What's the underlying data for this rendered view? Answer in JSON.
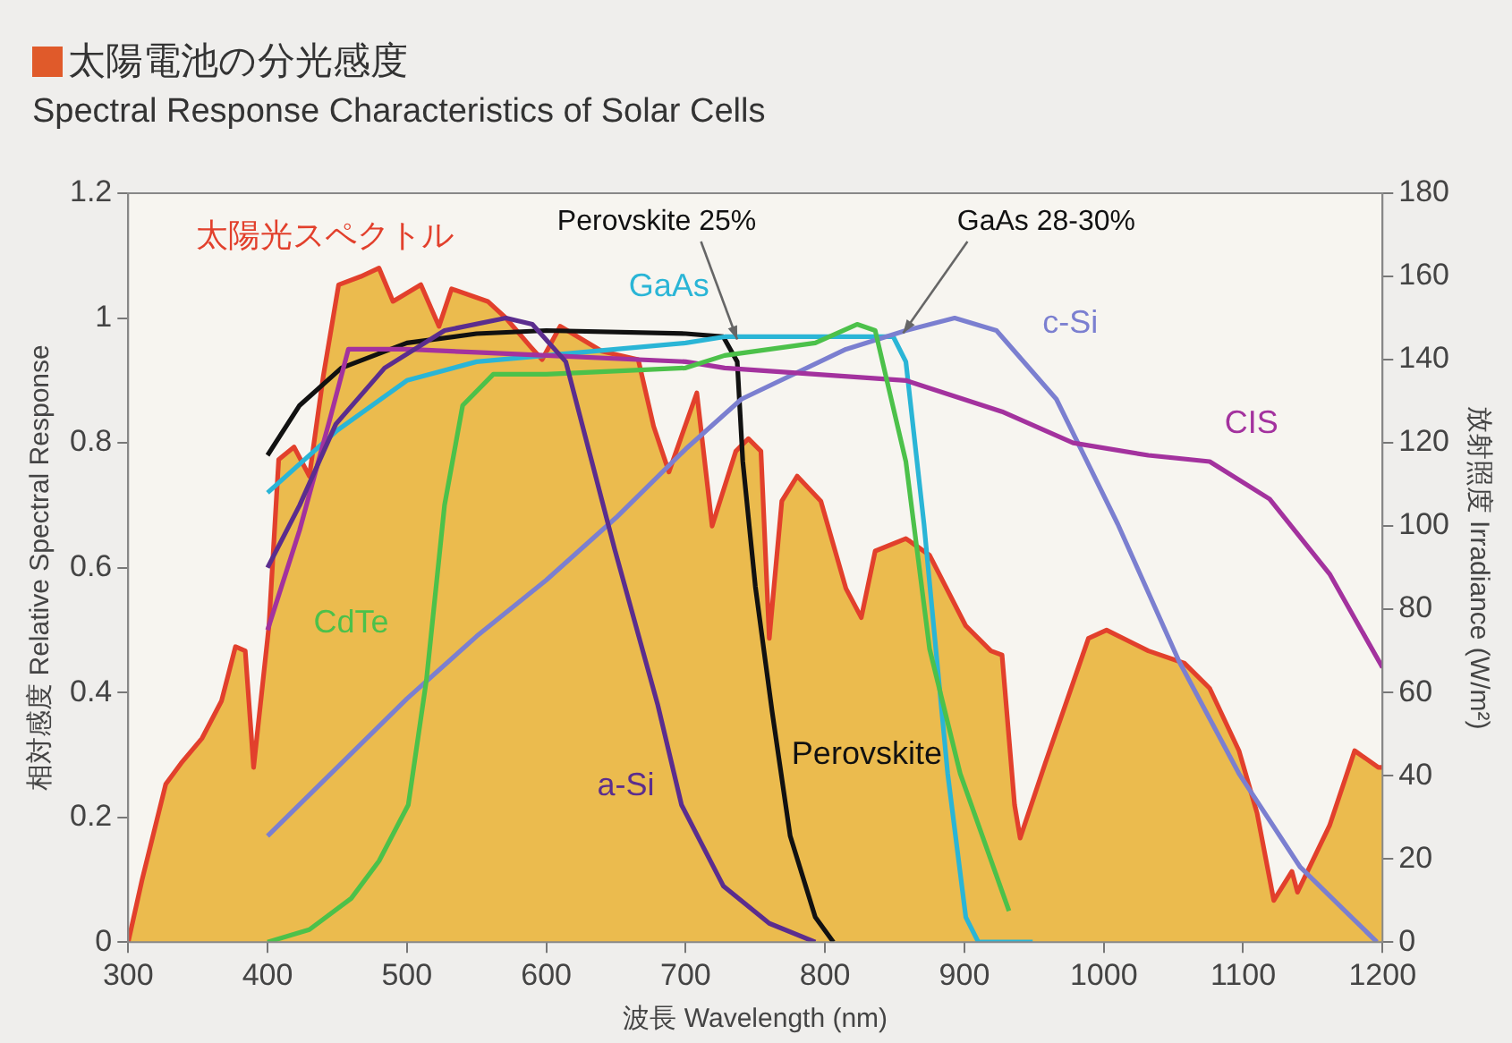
{
  "chart_data": {
    "type": "line",
    "title": "太陽電池の分光感度",
    "subtitle": "Spectral Response Characteristics of Solar Cells",
    "xlabel": "波長 Wavelength (nm)",
    "ylabel": "相対感度 Relative Spectral Response",
    "y2label": "放射照度 Irradiance (W/m²)",
    "xlim": [
      300,
      1200
    ],
    "xticks": [
      300,
      400,
      500,
      600,
      700,
      800,
      900,
      1000,
      1100,
      1200
    ],
    "ylim": [
      0,
      1.2
    ],
    "yticks": [
      0,
      0.2,
      0.4,
      0.6,
      0.8,
      1,
      1.2
    ],
    "y2lim": [
      0,
      180
    ],
    "y2ticks": [
      0,
      20,
      40,
      60,
      80,
      100,
      120,
      140,
      160,
      180
    ],
    "grid": false,
    "legend": false,
    "marker": "none",
    "series": [
      {
        "name": "太陽光スペクトル",
        "type": "area",
        "axis": "y2",
        "color": "#e2402c",
        "x": [
          300,
          310,
          327,
          338,
          353,
          367,
          377,
          384,
          390,
          401,
          408,
          419,
          430,
          440,
          451,
          467,
          480,
          490,
          510,
          523,
          532,
          558,
          571,
          589,
          597,
          610,
          640,
          666,
          677,
          688,
          708,
          719,
          736,
          745,
          754,
          760,
          769,
          780,
          797,
          815,
          826,
          836,
          858,
          875,
          901,
          919,
          927,
          936,
          940,
          958,
          989,
          1002,
          1032,
          1058,
          1076,
          1097,
          1110,
          1122,
          1135,
          1139,
          1162,
          1180,
          1197,
          1200
        ],
        "values": [
          0,
          15,
          38,
          43,
          49,
          58,
          71,
          70,
          42,
          76,
          116,
          119,
          112,
          136,
          158,
          160,
          162,
          154,
          158,
          148,
          157,
          154,
          150,
          143,
          140,
          148,
          142,
          140,
          124,
          113,
          132,
          100,
          118,
          121,
          118,
          73,
          106,
          112,
          106,
          85,
          78,
          94,
          97,
          93,
          76,
          70,
          69,
          33,
          25,
          43,
          73,
          75,
          70,
          67,
          61,
          46,
          31,
          10,
          17,
          12,
          28,
          46,
          42,
          42
        ]
      },
      {
        "name": "a-Si",
        "color": "#5b2d8e",
        "x": [
          400,
          423,
          449,
          484,
          527,
          571,
          590,
          614,
          649,
          680,
          697,
          727,
          760,
          793
        ],
        "values": [
          0.6,
          0.7,
          0.83,
          0.92,
          0.98,
          1,
          0.99,
          0.93,
          0.63,
          0.38,
          0.22,
          0.09,
          0.03,
          0
        ]
      },
      {
        "name": "CdTe",
        "color": "#4cc14a",
        "x": [
          400,
          430,
          460,
          480,
          501,
          514,
          527,
          540,
          562,
          600,
          700,
          728,
          793,
          823,
          836,
          858,
          875,
          897,
          932
        ],
        "values": [
          0,
          0.02,
          0.07,
          0.13,
          0.22,
          0.42,
          0.7,
          0.86,
          0.91,
          0.91,
          0.92,
          0.94,
          0.96,
          0.99,
          0.98,
          0.77,
          0.47,
          0.27,
          0.05
        ]
      },
      {
        "name": "CIS",
        "color": "#a3329e",
        "x": [
          400,
          423,
          445,
          458,
          500,
          550,
          600,
          700,
          728,
          858,
          927,
          978,
          1032,
          1076,
          1119,
          1162,
          1200
        ],
        "values": [
          0.5,
          0.66,
          0.84,
          0.95,
          0.95,
          0.945,
          0.94,
          0.93,
          0.92,
          0.9,
          0.85,
          0.8,
          0.78,
          0.77,
          0.71,
          0.59,
          0.44
        ]
      },
      {
        "name": "c-Si",
        "color": "#7b7fd0",
        "x": [
          400,
          450,
          500,
          550,
          600,
          650,
          700,
          740,
          815,
          858,
          893,
          923,
          966,
          1010,
          1054,
          1097,
          1141,
          1196
        ],
        "values": [
          0.17,
          0.28,
          0.39,
          0.49,
          0.58,
          0.68,
          0.79,
          0.87,
          0.95,
          0.98,
          1,
          0.98,
          0.87,
          0.67,
          0.45,
          0.27,
          0.12,
          0
        ]
      },
      {
        "name": "GaAs",
        "color": "#2ab5d6",
        "x": [
          400,
          450,
          500,
          550,
          600,
          650,
          700,
          728,
          849,
          858,
          871,
          888,
          901,
          910,
          949
        ],
        "values": [
          0.72,
          0.82,
          0.9,
          0.93,
          0.94,
          0.95,
          0.96,
          0.97,
          0.97,
          0.93,
          0.67,
          0.27,
          0.04,
          0,
          0
        ]
      },
      {
        "name": "Perovskite",
        "color": "#111111",
        "x": [
          400,
          423,
          453,
          500,
          550,
          600,
          700,
          727,
          737,
          741,
          750,
          762,
          775,
          793,
          806
        ],
        "values": [
          0.78,
          0.86,
          0.92,
          0.96,
          0.975,
          0.98,
          0.975,
          0.97,
          0.93,
          0.77,
          0.57,
          0.37,
          0.17,
          0.04,
          0
        ]
      }
    ],
    "annotations": [
      {
        "text": "Perovskite 25%",
        "x": 737,
        "y": 0.96
      },
      {
        "text": "GaAs 28-30%",
        "x": 856,
        "y": 0.97
      }
    ]
  }
}
